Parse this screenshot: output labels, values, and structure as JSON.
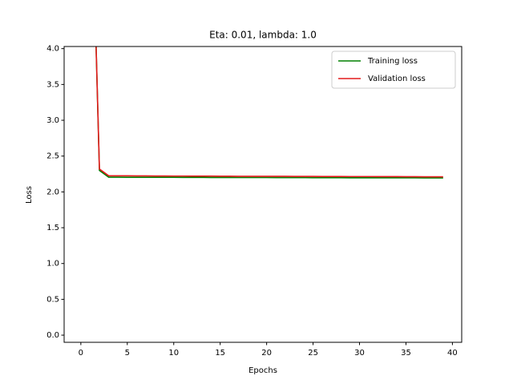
{
  "chart_data": {
    "type": "line",
    "title": "Eta: 0.01, lambda: 1.0",
    "xlabel": "Epochs",
    "ylabel": "Loss",
    "x": [
      1,
      2,
      3,
      4,
      5,
      6,
      7,
      8,
      9,
      10,
      11,
      12,
      13,
      14,
      15,
      16,
      17,
      18,
      19,
      20,
      21,
      22,
      23,
      24,
      25,
      26,
      27,
      28,
      29,
      30,
      31,
      32,
      33,
      34,
      35,
      36,
      37,
      38,
      39
    ],
    "series": [
      {
        "name": "Training loss",
        "color": "#008000",
        "values": [
          7.1,
          2.3,
          2.205,
          2.205,
          2.204,
          2.204,
          2.204,
          2.203,
          2.203,
          2.203,
          2.202,
          2.202,
          2.202,
          2.201,
          2.201,
          2.201,
          2.2,
          2.2,
          2.2,
          2.2,
          2.199,
          2.199,
          2.199,
          2.199,
          2.198,
          2.198,
          2.198,
          2.198,
          2.197,
          2.197,
          2.197,
          2.197,
          2.196,
          2.196,
          2.196,
          2.196,
          2.195,
          2.195,
          2.195
        ]
      },
      {
        "name": "Validation loss",
        "color": "#e41a1c",
        "values": [
          7.1,
          2.32,
          2.225,
          2.224,
          2.224,
          2.223,
          2.223,
          2.222,
          2.222,
          2.221,
          2.221,
          2.22,
          2.22,
          2.22,
          2.219,
          2.219,
          2.218,
          2.218,
          2.218,
          2.217,
          2.217,
          2.217,
          2.216,
          2.216,
          2.216,
          2.215,
          2.215,
          2.215,
          2.214,
          2.214,
          2.214,
          2.213,
          2.213,
          2.213,
          2.212,
          2.212,
          2.211,
          2.211,
          2.21
        ]
      }
    ],
    "xlim": [
      -1.8,
      41
    ],
    "ylim": [
      -0.1,
      4.03
    ],
    "xticks": [
      0,
      5,
      10,
      15,
      20,
      25,
      30,
      35,
      40
    ],
    "yticks": [
      {
        "value": 0,
        "label": "0.0"
      },
      0.5,
      {
        "value": 1,
        "label": "1.0"
      },
      1.5,
      {
        "value": 2,
        "label": "2.0"
      },
      2.5,
      {
        "value": 3,
        "label": "3.0"
      },
      3.5,
      {
        "value": 4,
        "label": "4.0"
      }
    ],
    "legend": "upper right"
  }
}
